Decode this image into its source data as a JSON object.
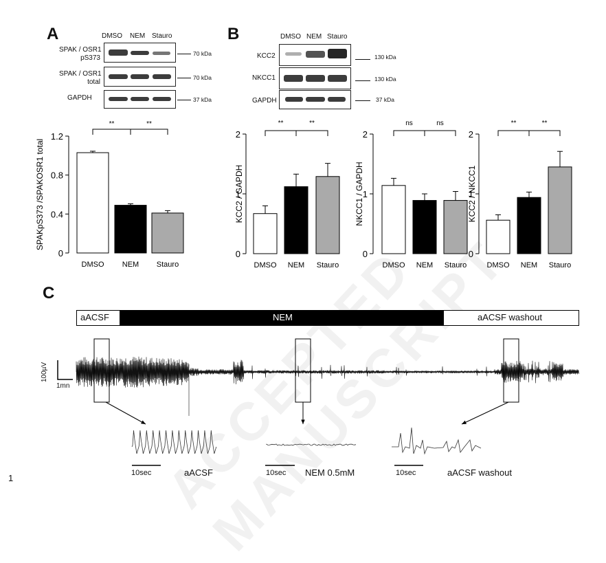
{
  "panels": {
    "a": "A",
    "b": "B",
    "c": "C"
  },
  "page_number": "1",
  "watermark": "ACCEPTED MANUSCRIPT",
  "panel_a": {
    "blot_columns": [
      "DMSO",
      "NEM",
      "Stauro"
    ],
    "blot_rows": [
      {
        "label": "SPAK / OSR1\npS373",
        "kda": "70 kDa"
      },
      {
        "label": "SPAK / OSR1\ntotal",
        "kda": "70 kDa"
      },
      {
        "label": "GAPDH",
        "kda": "37 kDa"
      }
    ],
    "significance": [
      "**",
      "**"
    ]
  },
  "panel_b": {
    "blot_columns": [
      "DMSO",
      "NEM",
      "Stauro"
    ],
    "blot_rows": [
      {
        "label": "KCC2",
        "kda": "130 kDa"
      },
      {
        "label": "NKCC1",
        "kda": "130 kDa"
      },
      {
        "label": "GAPDH",
        "kda": "37 kDa"
      }
    ]
  },
  "panel_c": {
    "conditions": [
      "aACSF",
      "NEM",
      "aACSF washout"
    ],
    "scale_v": "100µV",
    "scale_t": "1mn",
    "insets": [
      {
        "scale": "10sec",
        "label": "aACSF"
      },
      {
        "scale": "10sec",
        "label": "NEM 0.5mM"
      },
      {
        "scale": "10sec",
        "label": "aACSF washout"
      }
    ]
  },
  "chart_data": [
    {
      "type": "bar",
      "categories": [
        "DMSO",
        "NEM",
        "Stauro"
      ],
      "values": [
        1.03,
        0.49,
        0.41
      ],
      "errors": [
        0.015,
        0.015,
        0.025
      ],
      "ylabel": "SPAKpS373 /SPAKOSR1 total",
      "ylim": [
        0,
        1.2
      ],
      "yticks": [
        "0",
        "0.4",
        "0.8",
        "1.2"
      ],
      "significance": [
        "**",
        "**"
      ],
      "colors": [
        "#ffffff",
        "#000000",
        "#aaaaaa"
      ]
    },
    {
      "type": "bar",
      "categories": [
        "DMSO",
        "NEM",
        "Stauro"
      ],
      "values": [
        0.67,
        1.12,
        1.29
      ],
      "errors": [
        0.13,
        0.21,
        0.22
      ],
      "ylabel": "KCC2 / GAPDH",
      "ylim": [
        0,
        2
      ],
      "yticks": [
        "0",
        "1",
        "2"
      ],
      "significance": [
        "**",
        "**"
      ],
      "colors": [
        "#ffffff",
        "#000000",
        "#aaaaaa"
      ]
    },
    {
      "type": "bar",
      "categories": [
        "DMSO",
        "NEM",
        "Stauro"
      ],
      "values": [
        1.14,
        0.89,
        0.89
      ],
      "errors": [
        0.12,
        0.11,
        0.15
      ],
      "ylabel": "NKCC1 / GAPDH",
      "ylim": [
        0,
        2
      ],
      "yticks": [
        "0",
        "1",
        "2"
      ],
      "significance": [
        "ns",
        "ns"
      ],
      "colors": [
        "#ffffff",
        "#000000",
        "#aaaaaa"
      ]
    },
    {
      "type": "bar",
      "categories": [
        "DMSO",
        "NEM",
        "Stauro"
      ],
      "values": [
        0.56,
        0.94,
        1.45
      ],
      "errors": [
        0.09,
        0.09,
        0.26
      ],
      "ylabel": "KCC2 / NKCC1",
      "ylim": [
        0,
        2
      ],
      "yticks": [
        "0",
        "1",
        "2"
      ],
      "significance": [
        "**",
        "**"
      ],
      "colors": [
        "#ffffff",
        "#000000",
        "#aaaaaa"
      ]
    }
  ]
}
